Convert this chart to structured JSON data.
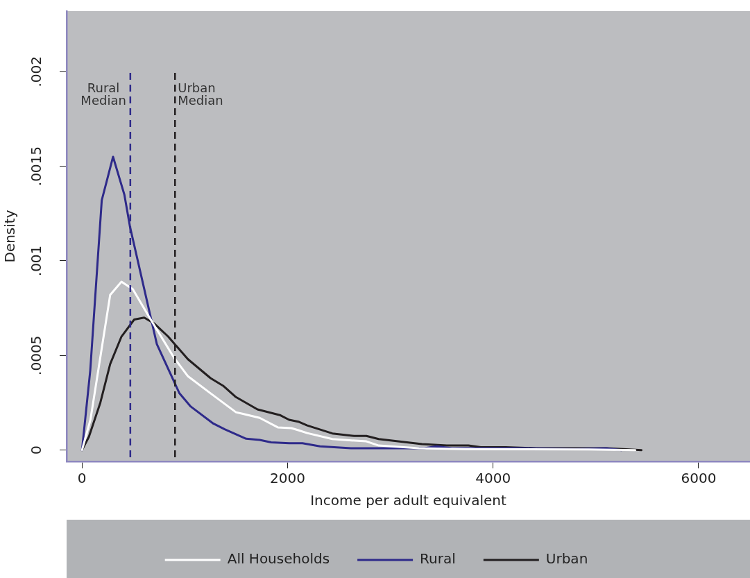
{
  "chart_data": {
    "type": "line",
    "xlabel": "Income per adult equivalent",
    "ylabel": "Density",
    "xlim": [
      -150,
      6500
    ],
    "xticks": [
      0,
      2000,
      4000,
      6000
    ],
    "ylim": [
      -6e-05,
      0.00232
    ],
    "yticks": [
      {
        "value": 0,
        "label": "0"
      },
      {
        "value": 0.0005,
        "label": ".0005"
      },
      {
        "value": 0.001,
        "label": ".001"
      },
      {
        "value": 0.0015,
        "label": ".0015"
      },
      {
        "value": 0.002,
        "label": ".002"
      }
    ],
    "grid": false,
    "legend": "bottom",
    "marker": "none",
    "line_style": "solid",
    "series": [
      {
        "name": "All Households",
        "color": "#ffffff",
        "x": [
          0,
          82,
          274,
          384,
          494,
          646,
          893,
          1031,
          1251,
          1498,
          1575,
          1729,
          1905,
          2037,
          2105,
          2191,
          2436,
          2767,
          2887,
          3278,
          3730,
          4331,
          4933,
          5384
        ],
        "values": [
          0,
          0.00016,
          0.00082,
          0.00089,
          0.00085,
          0.00071,
          0.00049,
          0.00039,
          0.0003,
          0.0002,
          0.00019,
          0.00017,
          0.00012,
          0.000116,
          0.000105,
          9e-05,
          5.8e-05,
          4.6e-05,
          2.4e-05,
          1e-05,
          5e-06,
          4e-06,
          3e-06,
          0
        ]
      },
      {
        "name": "Rural",
        "color": "#2e2a8a",
        "x": [
          0,
          80,
          192,
          302,
          412,
          467,
          728,
          948,
          1058,
          1278,
          1388,
          1597,
          1729,
          1840,
          2015,
          2145,
          2316,
          2617,
          2900,
          3330,
          3450,
          3600,
          4200,
          4800,
          5100,
          5250
        ],
        "values": [
          0,
          0.00042,
          0.00132,
          0.00155,
          0.00135,
          0.00118,
          0.00056,
          0.0003,
          0.00023,
          0.00014,
          0.00011,
          6e-05,
          5.4e-05,
          4.1e-05,
          3.6e-05,
          3.6e-05,
          2e-05,
          1e-05,
          1e-05,
          1e-05,
          2e-05,
          1e-05,
          1e-05,
          5e-06,
          1e-05,
          0
        ]
      },
      {
        "name": "Urban",
        "color": "#231f20",
        "x": [
          0,
          67,
          178,
          274,
          384,
          508,
          605,
          700,
          838,
          1031,
          1251,
          1373,
          1498,
          1707,
          1925,
          2015,
          2105,
          2191,
          2436,
          2647,
          2767,
          2887,
          3308,
          3549,
          3760,
          3880,
          4121,
          4421,
          5113,
          5444
        ],
        "values": [
          0,
          7e-05,
          0.00025,
          0.000455,
          0.0006,
          0.00069,
          0.0007,
          0.00067,
          0.0006,
          0.00048,
          0.00038,
          0.00034,
          0.00028,
          0.000215,
          0.000185,
          0.00016,
          0.00015,
          0.00013,
          8.8e-05,
          7.5e-05,
          7.5e-05,
          5.8e-05,
          3.2e-05,
          2.4e-05,
          2.4e-05,
          1.5e-05,
          1.5e-05,
          1e-05,
          1e-05,
          0
        ]
      }
    ],
    "ref_lines": [
      {
        "axis": "x",
        "value": 470,
        "label": "Rural\nMedian",
        "color": "#2e2a8a",
        "line_style": "dashed"
      },
      {
        "axis": "x",
        "value": 905,
        "label": "Urban\nMedian",
        "color": "#231f20",
        "line_style": "dashed"
      }
    ]
  }
}
